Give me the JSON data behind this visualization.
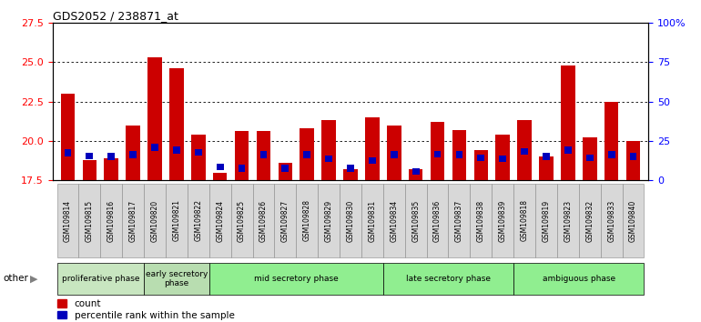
{
  "title": "GDS2052 / 238871_at",
  "samples": [
    "GSM109814",
    "GSM109815",
    "GSM109816",
    "GSM109817",
    "GSM109820",
    "GSM109821",
    "GSM109822",
    "GSM109824",
    "GSM109825",
    "GSM109826",
    "GSM109827",
    "GSM109828",
    "GSM109829",
    "GSM109830",
    "GSM109831",
    "GSM109834",
    "GSM109835",
    "GSM109836",
    "GSM109837",
    "GSM109838",
    "GSM109839",
    "GSM109818",
    "GSM109819",
    "GSM109823",
    "GSM109832",
    "GSM109833",
    "GSM109840"
  ],
  "count_values": [
    23.0,
    18.8,
    18.9,
    21.0,
    25.3,
    24.6,
    20.4,
    18.0,
    20.6,
    20.6,
    18.6,
    20.8,
    21.3,
    18.2,
    21.5,
    21.0,
    18.2,
    21.2,
    20.7,
    19.4,
    20.4,
    21.3,
    19.0,
    24.8,
    20.2,
    22.5,
    20.0
  ],
  "blue_positions": [
    19.0,
    18.85,
    18.8,
    18.9,
    19.35,
    19.2,
    19.05,
    18.15,
    18.05,
    18.9,
    18.05,
    18.9,
    18.65,
    18.05,
    18.55,
    18.9,
    17.85,
    18.95,
    18.9,
    18.7,
    18.65,
    19.1,
    18.8,
    19.2,
    18.7,
    18.9,
    18.8
  ],
  "blue_heights": [
    0.45,
    0.42,
    0.42,
    0.45,
    0.45,
    0.45,
    0.43,
    0.42,
    0.42,
    0.43,
    0.43,
    0.43,
    0.42,
    0.42,
    0.43,
    0.43,
    0.4,
    0.43,
    0.43,
    0.42,
    0.42,
    0.44,
    0.43,
    0.45,
    0.43,
    0.43,
    0.43
  ],
  "ylim": [
    17.5,
    27.5
  ],
  "yticks_left": [
    17.5,
    20.0,
    22.5,
    25.0,
    27.5
  ],
  "yticks_right_vals": [
    0,
    25,
    50,
    75,
    100
  ],
  "yticks_right_labels": [
    "0",
    "25",
    "50",
    "75",
    "100%"
  ],
  "phases": [
    {
      "label": "proliferative phase",
      "start": 0,
      "end": 4,
      "color": "#c8e6c0"
    },
    {
      "label": "early secretory\nphase",
      "start": 4,
      "end": 7,
      "color": "#b0d8a8"
    },
    {
      "label": "mid secretory phase",
      "start": 7,
      "end": 15,
      "color": "#90ee90"
    },
    {
      "label": "late secretory phase",
      "start": 15,
      "end": 21,
      "color": "#90ee90"
    },
    {
      "label": "ambiguous phase",
      "start": 21,
      "end": 27,
      "color": "#90ee90"
    }
  ],
  "bar_color_red": "#cc0000",
  "bar_color_blue": "#0000bb",
  "bar_width": 0.65,
  "baseline": 17.5
}
